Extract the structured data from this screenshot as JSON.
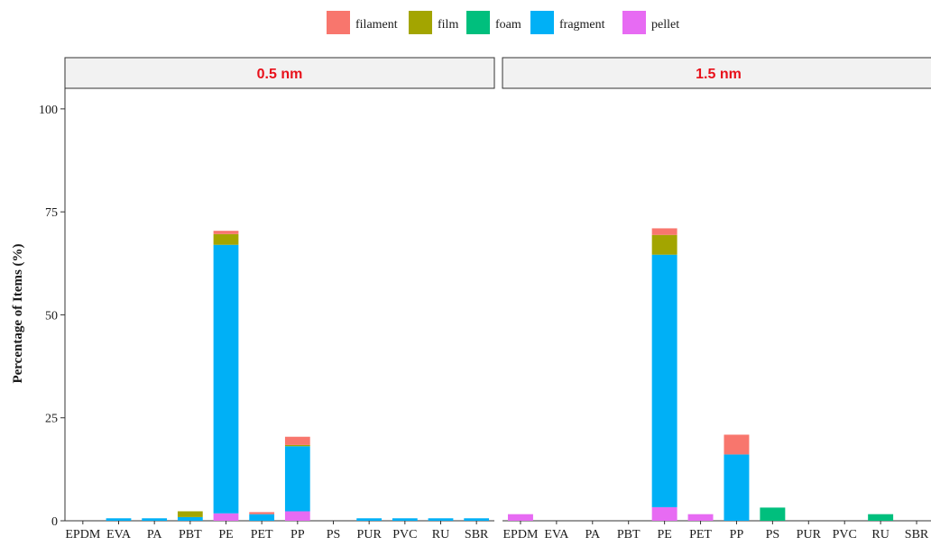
{
  "chart_data": {
    "type": "bar",
    "stacked": true,
    "ylabel": "Percentage of Items (%)",
    "xlabel": "",
    "ylim": [
      0,
      105
    ],
    "y_ticks": [
      0,
      25,
      50,
      75,
      100
    ],
    "grid": false,
    "legend_position": "top",
    "categories": [
      "EPDM",
      "EVA",
      "PA",
      "PBT",
      "PE",
      "PET",
      "PP",
      "PS",
      "PUR",
      "PVC",
      "RU",
      "SBR"
    ],
    "stack_order": [
      "pellet",
      "fragment",
      "foam",
      "film",
      "filament"
    ],
    "legend": [
      {
        "name": "filament",
        "color": "#F8766D"
      },
      {
        "name": "film",
        "color": "#A3A500"
      },
      {
        "name": "foam",
        "color": "#00BF7D"
      },
      {
        "name": "fragment",
        "color": "#00B0F6"
      },
      {
        "name": "pellet",
        "color": "#E76BF3"
      }
    ],
    "panels": [
      {
        "strip": "0.5 nm",
        "strip_color": "#e8111b",
        "series": [
          {
            "name": "pellet",
            "values": [
              0,
              0,
              0,
              0,
              1.8,
              0,
              2.3,
              0,
              0,
              0,
              0,
              0
            ]
          },
          {
            "name": "fragment",
            "values": [
              0,
              0.6,
              0.6,
              0.9,
              65.2,
              1.6,
              15.8,
              0,
              0.6,
              0.6,
              0.6,
              0.6
            ]
          },
          {
            "name": "foam",
            "values": [
              0,
              0,
              0,
              0,
              0,
              0,
              0,
              0,
              0,
              0,
              0,
              0
            ]
          },
          {
            "name": "film",
            "values": [
              0,
              0,
              0,
              1.4,
              2.6,
              0,
              0.3,
              0,
              0,
              0,
              0,
              0
            ]
          },
          {
            "name": "filament",
            "values": [
              0,
              0,
              0,
              0,
              0.8,
              0.5,
              2.0,
              0,
              0,
              0,
              0,
              0
            ]
          }
        ]
      },
      {
        "strip": "1.5 nm",
        "strip_color": "#e8111b",
        "series": [
          {
            "name": "pellet",
            "values": [
              1.6,
              0,
              0,
              0,
              3.3,
              1.6,
              0,
              0,
              0,
              0,
              0,
              0
            ]
          },
          {
            "name": "fragment",
            "values": [
              0,
              0,
              0,
              0,
              61.3,
              0,
              16.1,
              0,
              0,
              0,
              0,
              0
            ]
          },
          {
            "name": "foam",
            "values": [
              0,
              0,
              0,
              0,
              0,
              0,
              0,
              3.2,
              0,
              0,
              1.6,
              0
            ]
          },
          {
            "name": "film",
            "values": [
              0,
              0,
              0,
              0,
              4.8,
              0,
              0,
              0,
              0,
              0,
              0,
              0
            ]
          },
          {
            "name": "filament",
            "values": [
              0,
              0,
              0,
              0,
              1.6,
              0,
              4.8,
              0,
              0,
              0,
              0,
              0
            ]
          }
        ]
      }
    ]
  }
}
